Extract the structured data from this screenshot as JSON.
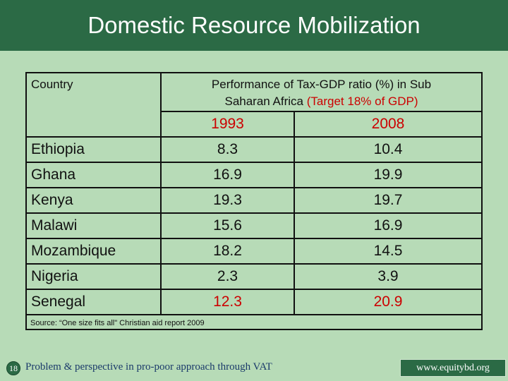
{
  "slide": {
    "title": "Domestic Resource Mobilization"
  },
  "table": {
    "country_header": "Country",
    "perf_header_line1": "Performance of Tax-GDP ratio (%) in Sub",
    "perf_header_line2": "Saharan Africa",
    "perf_header_target": "(Target 18% of GDP)",
    "years": [
      "1993",
      "2008"
    ],
    "rows": [
      {
        "country": "Ethiopia",
        "v1993": "8.3",
        "v2008": "10.4"
      },
      {
        "country": "Ghana",
        "v1993": "16.9",
        "v2008": "19.9"
      },
      {
        "country": "Kenya",
        "v1993": "19.3",
        "v2008": "19.7"
      },
      {
        "country": "Malawi",
        "v1993": "15.6",
        "v2008": "16.9"
      },
      {
        "country": "Mozambique",
        "v1993": "18.2",
        "v2008": "14.5"
      },
      {
        "country": "Nigeria",
        "v1993": "2.3",
        "v2008": "3.9"
      },
      {
        "country": "Senegal",
        "v1993": "12.3",
        "v2008": "20.9"
      }
    ],
    "source": "Source: “One size fits all\" Christian aid report 2009"
  },
  "footer": {
    "slide_number": "18",
    "text": "Problem & perspective in pro-poor approach through VAT",
    "website": "www.equitybd.org"
  },
  "colors": {
    "title_bg": "#2b6a45",
    "background": "#b7dbb7",
    "accent_red": "#cc0000"
  }
}
